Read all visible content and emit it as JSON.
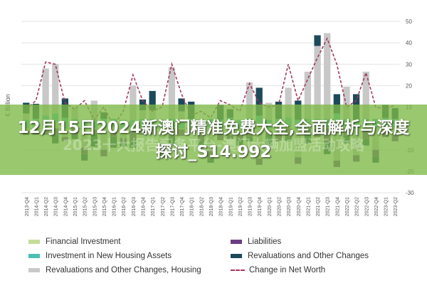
{
  "chart_data": {
    "type": "bar",
    "ylabel": "€ Billion",
    "ylim": [
      -30,
      50
    ],
    "yticks": [
      -30,
      -20,
      -10,
      0,
      10,
      20,
      30,
      40,
      50
    ],
    "categories": [
      "2013-Q4",
      "2014-Q1",
      "2014-Q2",
      "2014-Q3",
      "2014-Q4",
      "2015-Q1",
      "2015-Q2",
      "2015-Q3",
      "2015-Q4",
      "2016-Q1",
      "2016-Q2",
      "2016-Q3",
      "2016-Q4",
      "2017-Q1",
      "2017-Q2",
      "2017-Q3",
      "2017-Q4",
      "2018-Q1",
      "2018-Q2",
      "2018-Q3",
      "2018-Q4",
      "2019-Q1",
      "2019-Q2",
      "2019-Q3",
      "2019-Q4",
      "2020-Q1",
      "2020-Q2",
      "2020-Q3",
      "2020-Q4",
      "2021-Q1",
      "2021-Q2",
      "2021-Q3",
      "2021-Q4",
      "2022-Q1",
      "2022-Q2",
      "2022-Q3",
      "2022-Q4",
      "2023-Q1",
      "2023-Q2"
    ],
    "series": [
      {
        "name": "Financial Investment",
        "color": "#c5dc9a",
        "values": [
          -1,
          0.5,
          -1,
          3,
          -1,
          0.5,
          -1,
          -0.5,
          0.5,
          0.5,
          -0.5,
          -1,
          0.5,
          0.5,
          -0.5,
          0.5,
          -0.5,
          0.5,
          -1,
          0.5,
          -0.5,
          1,
          -1,
          0.5,
          2,
          -1,
          0.5,
          1,
          -0.5,
          0.5,
          0.5,
          0.5,
          3,
          0.5,
          -0.5,
          0.5,
          0.5,
          1,
          0.5
        ]
      },
      {
        "name": "Investment in New Housing Assets",
        "color": "#4bbfb4",
        "values": [
          4,
          4,
          6,
          4,
          5,
          4,
          4,
          4,
          4,
          4,
          4,
          4,
          4,
          4,
          4,
          4,
          4,
          4,
          4,
          4,
          4,
          4,
          4,
          4,
          4,
          4,
          4,
          4,
          4,
          4,
          4,
          4,
          4,
          4,
          4,
          4,
          4,
          4,
          4
        ]
      },
      {
        "name": "Revaluations and Other Changes, Housing",
        "color": "#c8c8c8",
        "values": [
          3,
          0,
          22,
          23,
          -3,
          5,
          -8,
          9,
          -10,
          -2,
          -4,
          16,
          4,
          4,
          -7,
          24,
          4,
          0,
          -2,
          -10,
          -2,
          -3,
          -1,
          17,
          -14,
          8,
          -2,
          14,
          -13,
          22,
          34,
          40,
          -15,
          15,
          -12,
          22,
          -10,
          -1,
          -3
        ]
      },
      {
        "name": "Liabilities",
        "color": "#6a3d84",
        "values": [
          -2,
          -3,
          -2,
          -3,
          -2,
          -3,
          -3,
          -2,
          -3,
          -2,
          -2,
          -4,
          -3,
          -3,
          -3,
          -4,
          -3,
          -2,
          -3,
          -4,
          -3,
          -2,
          -3,
          -4,
          -3,
          -2,
          -4,
          -4,
          -3,
          -3,
          -4,
          -6,
          -3,
          -3,
          -3,
          -5,
          -3,
          -3,
          -3
        ]
      },
      {
        "name": "Revaluations and Other Changes",
        "color": "#1c4a5a",
        "values": [
          5,
          7,
          0,
          -4,
          9,
          -2,
          -3,
          -6,
          3,
          -5,
          -2,
          -4,
          5,
          9,
          -3,
          -4,
          6,
          8,
          -3,
          -2,
          7,
          4,
          -3,
          -2,
          13,
          -5,
          8,
          -2,
          9,
          -4,
          5,
          -6,
          9,
          -4,
          12,
          -3,
          -3,
          6,
          5
        ]
      },
      {
        "name": "Change in Net Worth",
        "color": "#a3385f",
        "values": [
          9,
          13,
          31,
          30,
          12,
          9,
          13,
          4,
          10,
          1,
          8,
          25,
          13,
          8,
          10,
          30,
          16,
          6,
          8,
          5,
          13,
          11,
          8,
          21,
          12,
          10,
          11,
          30,
          13,
          23,
          33,
          42,
          30,
          10,
          13,
          26,
          10,
          9,
          11
        ]
      }
    ]
  },
  "overlay": {
    "title": "12月15日2024新澳门精准免费大全,全面解析与深度探讨_S14.992",
    "watermark": "2023十大报告配备平台-澳门大辆加盟活动攻略"
  }
}
